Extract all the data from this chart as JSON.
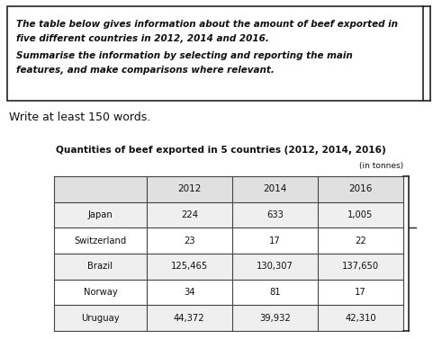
{
  "prompt_line1": "The table below gives information about the amount of beef exported in",
  "prompt_line2": "five different countries in 2012, 2014 and 2016.",
  "prompt_line3": "Summarise the information by selecting and reporting the main",
  "prompt_line4": "features, and make comparisons where relevant.",
  "subheading": "Write at least 150 words.",
  "table_title": "Quantities of beef exported in 5 countries (2012, 2014, 2016)",
  "table_unit": "(in tonnes)",
  "col_headers": [
    "",
    "2012",
    "2014",
    "2016"
  ],
  "rows": [
    [
      "Japan",
      "224",
      "633",
      "1,005"
    ],
    [
      "Switzerland",
      "23",
      "17",
      "22"
    ],
    [
      "Brazil",
      "125,465",
      "130,307",
      "137,650"
    ],
    [
      "Norway",
      "34",
      "81",
      "17"
    ],
    [
      "Uruguay",
      "44,372",
      "39,932",
      "42,310"
    ]
  ],
  "bg_color": "#ffffff",
  "box_border_color": "#222222",
  "table_line_color": "#444444",
  "header_bg": "#e0e0e0",
  "row_bg_alt": "#efefef",
  "row_bg": "#ffffff",
  "prompt_fontsize": 7.5,
  "subhead_fontsize": 9.0,
  "title_fontsize": 7.6,
  "cell_fontsize": 7.2
}
